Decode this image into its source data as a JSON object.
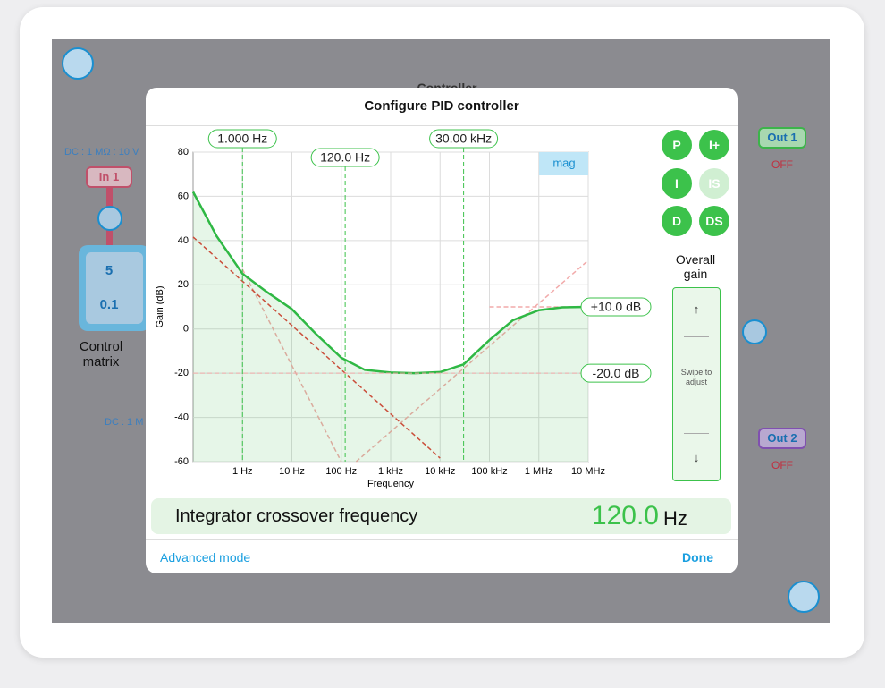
{
  "app": {
    "controller_title": "Controller",
    "in1_info": "DC : 1 MΩ : 10 V",
    "in1": "In 1",
    "matrix": [
      "5",
      "0.1"
    ],
    "matrix_label": "Control matrix",
    "in2_info": "DC : 1 M",
    "out1": "Out 1",
    "out1_state": "OFF",
    "out2": "Out 2",
    "out2_state": "OFF"
  },
  "dialog": {
    "title": "Configure PID controller",
    "buttons": [
      "P",
      "I+",
      "I",
      "IS",
      "D",
      "DS"
    ],
    "gain_label": "Overall gain",
    "swipe_up": "↑",
    "swipe_hint": "Swipe to adjust",
    "swipe_down": "↓",
    "readout": {
      "label": "Integrator crossover frequency",
      "value": "120.0",
      "unit": "Hz"
    },
    "advanced": "Advanced mode",
    "done": "Done"
  },
  "chart_data": {
    "type": "line",
    "xlabel": "Frequency",
    "ylabel": "Gain (dB)",
    "xscale": "log",
    "grid": true,
    "badge": "mag",
    "xlim": [
      0.1,
      10000000
    ],
    "ylim": [
      -60,
      80
    ],
    "xticks": [
      {
        "value": 1,
        "label": "1 Hz"
      },
      {
        "value": 10,
        "label": "10 Hz"
      },
      {
        "value": 100,
        "label": "100 Hz"
      },
      {
        "value": 1000,
        "label": "1 kHz"
      },
      {
        "value": 10000,
        "label": "10 kHz"
      },
      {
        "value": 100000,
        "label": "100 kHz"
      },
      {
        "value": 1000000,
        "label": "1 MHz"
      },
      {
        "value": 10000000,
        "label": "10 MHz"
      }
    ],
    "yticks": [
      -60,
      -40,
      -20,
      0,
      20,
      40,
      60,
      80
    ],
    "x_markers": [
      {
        "value": 1,
        "label": "1.000 Hz"
      },
      {
        "value": 120,
        "label": "120.0 Hz"
      },
      {
        "value": 30000,
        "label": "30.00 kHz"
      }
    ],
    "y_markers": [
      {
        "value": 10,
        "label": "+10.0 dB"
      },
      {
        "value": -20,
        "label": "-20.0 dB"
      }
    ],
    "series": [
      {
        "color": "#2fb844",
        "fill": true,
        "x": [
          0.1,
          0.3,
          1,
          3,
          10,
          30,
          100,
          300,
          1000,
          3000,
          10000,
          30000,
          100000,
          300000,
          1000000,
          3000000,
          10000000
        ],
        "values": [
          62,
          42,
          25,
          17,
          9,
          -2,
          -13,
          -18.5,
          -19.7,
          -20,
          -19.5,
          -16,
          -5,
          4,
          8.5,
          9.8,
          10
        ]
      },
      {
        "color": "#e0403a",
        "dash": true,
        "x": [
          0.1,
          10000
        ],
        "values": [
          41.6,
          -58.4
        ]
      },
      {
        "color": "#f2aaaa",
        "dash": true,
        "x": [
          1,
          100
        ],
        "values": [
          27,
          -60
        ]
      },
      {
        "color": "#f2aaaa",
        "dash": true,
        "x": [
          200,
          10000000
        ],
        "values": [
          -60,
          31
        ]
      },
      {
        "color": "#f2aaaa",
        "dash": true,
        "x": [
          100000,
          10000000
        ],
        "values": [
          10,
          10
        ]
      }
    ]
  }
}
